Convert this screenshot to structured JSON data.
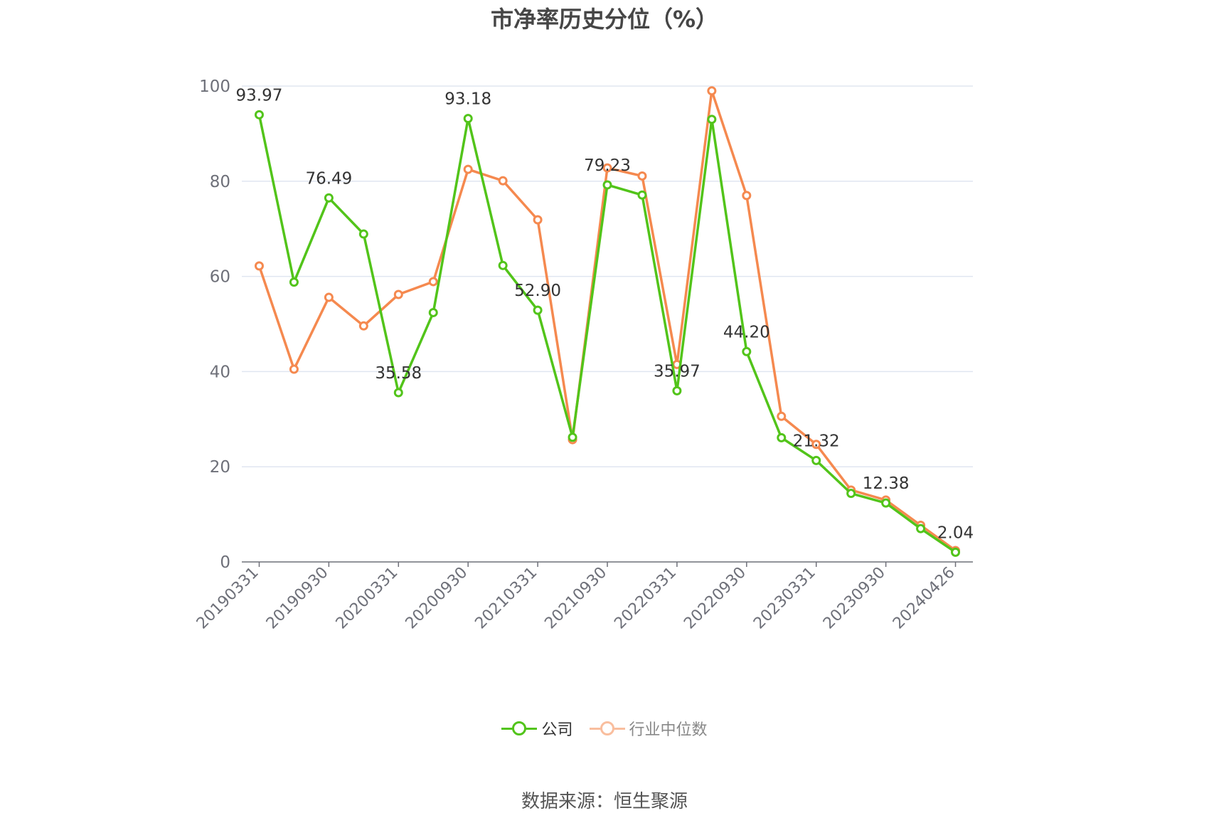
{
  "title": "市净率历史分位（%）",
  "source": "数据来源：恒生聚源",
  "chart_data": {
    "type": "line",
    "ylim": [
      0,
      100
    ],
    "yticks": [
      0,
      20,
      40,
      60,
      80,
      100
    ],
    "x": [
      "20190331",
      "20190630",
      "20190930",
      "20191231",
      "20200331",
      "20200630",
      "20200930",
      "20201231",
      "20210331",
      "20210630",
      "20210930",
      "20211231",
      "20220331",
      "20220630",
      "20220930",
      "20221231",
      "20230331",
      "20230630",
      "20230930",
      "20231231",
      "20240426"
    ],
    "xtick_labels": [
      "20190331",
      "20190930",
      "20200331",
      "20200930",
      "20210331",
      "20210930",
      "20220331",
      "20220930",
      "20230331",
      "20230930",
      "20240426"
    ],
    "series": [
      {
        "name": "公司",
        "color": "#52c41a",
        "values": [
          93.97,
          58.8,
          76.49,
          68.9,
          35.58,
          52.4,
          93.18,
          62.3,
          52.9,
          26.2,
          79.23,
          77.1,
          35.97,
          93.0,
          44.2,
          26.1,
          21.32,
          14.4,
          12.38,
          7.0,
          2.04
        ],
        "labels": {
          "0": "93.97",
          "2": "76.49",
          "4": "35.58",
          "6": "93.18",
          "8": "52.90",
          "10": "79.23",
          "12": "35.97",
          "14": "44.20",
          "16": "21.32",
          "18": "12.38",
          "20": "2.04"
        }
      },
      {
        "name": "行业中位数",
        "color": "#f5894f",
        "values": [
          62.2,
          40.5,
          55.6,
          49.6,
          56.2,
          58.9,
          82.5,
          80.1,
          71.9,
          25.7,
          82.8,
          81.1,
          41.5,
          99.0,
          77.0,
          30.6,
          24.7,
          15.1,
          13.0,
          7.7,
          2.4
        ]
      }
    ]
  }
}
